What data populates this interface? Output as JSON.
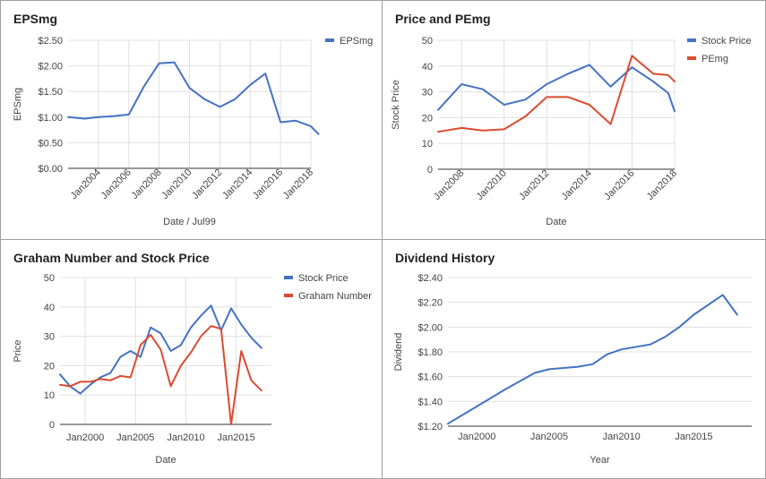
{
  "colors": {
    "blue": "#4472c4",
    "red": "#db4b31",
    "grid": "#e0e0e0",
    "axis": "#333333",
    "text": "#444444"
  },
  "chart_data": [
    {
      "type": "line",
      "title": "EPSmg",
      "xlabel": "Date / Jul99",
      "ylabel": "EPSmg",
      "xlim": [
        2002.0,
        2018.0
      ],
      "ylim": [
        0,
        2.5
      ],
      "yticks": [
        0,
        0.5,
        1.0,
        1.5,
        2.0,
        2.5
      ],
      "ytick_labels": [
        "$0.00",
        "$0.50",
        "$1.00",
        "$1.50",
        "$2.00",
        "$2.50"
      ],
      "xticks": [
        2004,
        2006,
        2008,
        2010,
        2012,
        2014,
        2016,
        2018
      ],
      "xtick_labels": [
        "Jan2004",
        "Jan2006",
        "Jan2008",
        "Jan2010",
        "Jan2012",
        "Jan2014",
        "Jan2016",
        "Jan2018"
      ],
      "x_grid": true,
      "legend": "top-right",
      "series": [
        {
          "name": "EPSmg",
          "color": "#4472c4",
          "x": [
            2002.0,
            2003.1,
            2004.0,
            2005.0,
            2006.0,
            2007.0,
            2008.0,
            2009.0,
            2010.0,
            2011.0,
            2012.0,
            2013.0,
            2014.0,
            2015.0,
            2016.0,
            2017.0,
            2018.0,
            2018.5
          ],
          "y": [
            1.0,
            0.97,
            1.0,
            1.02,
            1.05,
            1.6,
            2.05,
            2.07,
            1.57,
            1.35,
            1.2,
            1.35,
            1.63,
            1.85,
            0.9,
            0.93,
            0.82,
            0.67
          ]
        }
      ]
    },
    {
      "type": "line",
      "title": "Price and PEmg",
      "xlabel": "Date",
      "ylabel": "Stock Price",
      "xlim": [
        2006.9,
        2018.0
      ],
      "ylim": [
        0,
        50
      ],
      "yticks": [
        0,
        10,
        20,
        30,
        40,
        50
      ],
      "ytick_labels": [
        "0",
        "10",
        "20",
        "30",
        "40",
        "50"
      ],
      "xticks": [
        2008,
        2010,
        2012,
        2014,
        2016,
        2018
      ],
      "xtick_labels": [
        "Jan2008",
        "Jan2010",
        "Jan2012",
        "Jan2014",
        "Jan2016",
        "Jan2018"
      ],
      "x_grid": true,
      "legend": "top-right",
      "series": [
        {
          "name": "Stock Price",
          "color": "#4472c4",
          "x": [
            2006.9,
            2008.0,
            2009.0,
            2010.0,
            2011.0,
            2012.0,
            2013.0,
            2014.0,
            2015.0,
            2016.0,
            2017.0,
            2017.7,
            2018.0
          ],
          "y": [
            23,
            33,
            31,
            25,
            27,
            33,
            37,
            40.5,
            32,
            39.5,
            34,
            29.5,
            22.5
          ]
        },
        {
          "name": "PEmg",
          "color": "#db4b31",
          "x": [
            2006.9,
            2008.0,
            2009.0,
            2010.0,
            2011.0,
            2012.0,
            2013.0,
            2014.0,
            2015.0,
            2016.0,
            2017.0,
            2017.7,
            2018.0
          ],
          "y": [
            14.5,
            16,
            15,
            15.5,
            20.5,
            28,
            28,
            25,
            17.5,
            44,
            37,
            36.5,
            34
          ]
        }
      ]
    },
    {
      "type": "line",
      "title": "Graham Number and Stock Price",
      "xlabel": "Date",
      "ylabel": "Price",
      "xlim": [
        1997.5,
        2018.5
      ],
      "ylim": [
        0,
        50
      ],
      "yticks": [
        0,
        10,
        20,
        30,
        40,
        50
      ],
      "ytick_labels": [
        "0",
        "10",
        "20",
        "30",
        "40",
        "50"
      ],
      "xticks": [
        2000,
        2005,
        2010,
        2015
      ],
      "xtick_labels": [
        "Jan2000",
        "Jan2005",
        "Jan2010",
        "Jan2015"
      ],
      "x_grid": true,
      "legend": "top-right",
      "series": [
        {
          "name": "Stock Price",
          "color": "#4472c4",
          "x": [
            1997.5,
            1998.5,
            1999.5,
            2000.5,
            2001.5,
            2002.5,
            2003.5,
            2004.5,
            2005.5,
            2006.5,
            2007.5,
            2008.5,
            2009.5,
            2010.5,
            2011.5,
            2012.5,
            2013.5,
            2014.5,
            2015.5,
            2016.5,
            2017.5
          ],
          "y": [
            17,
            13,
            10.5,
            13.5,
            16,
            17.5,
            23,
            25,
            23,
            33,
            31,
            25,
            27,
            33,
            37,
            40.5,
            32,
            39.5,
            34,
            29.5,
            26
          ]
        },
        {
          "name": "Graham Number",
          "color": "#db4b31",
          "x": [
            1997.5,
            1998.5,
            1999.5,
            2000.5,
            2001.5,
            2002.5,
            2003.5,
            2004.5,
            2005.5,
            2006.5,
            2007.5,
            2008.5,
            2009.5,
            2010.5,
            2011.5,
            2012.5,
            2013.5,
            2014.5,
            2015.5,
            2016.5,
            2017.5
          ],
          "y": [
            13.5,
            13,
            14.5,
            14.5,
            15.5,
            15,
            16.5,
            16,
            27,
            30.5,
            25.5,
            13,
            20,
            24.5,
            30,
            33.5,
            32.5,
            0,
            25,
            15,
            11.5
          ]
        }
      ]
    },
    {
      "type": "line",
      "title": "Dividend History",
      "xlabel": "Year",
      "ylabel": "Dividend",
      "xlim": [
        1998.0,
        2019.0
      ],
      "ylim": [
        1.2,
        2.4
      ],
      "yticks": [
        1.2,
        1.4,
        1.6,
        1.8,
        2.0,
        2.2,
        2.4
      ],
      "ytick_labels": [
        "$1.20",
        "$1.40",
        "$1.60",
        "$1.80",
        "$2.00",
        "$2.20",
        "$2.40"
      ],
      "xticks": [
        2000,
        2005,
        2010,
        2015
      ],
      "xtick_labels": [
        "Jan2000",
        "Jan2005",
        "Jan2010",
        "Jan2015"
      ],
      "x_grid": false,
      "legend": "none",
      "series": [
        {
          "name": "",
          "color": "#4472c4",
          "x": [
            1998.0,
            2000.0,
            2002.0,
            2004.0,
            2005.0,
            2007.0,
            2008.0,
            2009.0,
            2010.0,
            2012.0,
            2013.0,
            2014.0,
            2015.0,
            2017.0,
            2018.0
          ],
          "y": [
            1.22,
            1.36,
            1.5,
            1.63,
            1.66,
            1.68,
            1.7,
            1.78,
            1.82,
            1.86,
            1.92,
            2.0,
            2.1,
            2.26,
            2.1
          ]
        }
      ]
    }
  ]
}
